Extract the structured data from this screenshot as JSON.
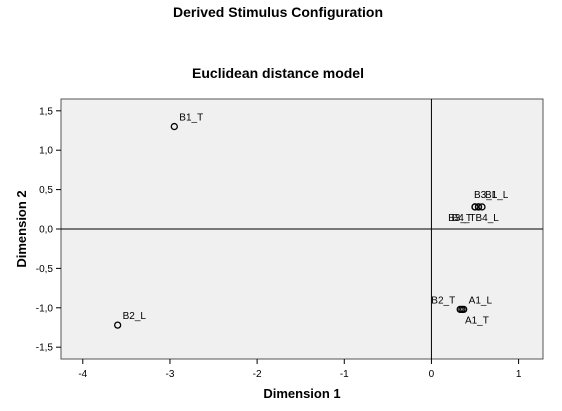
{
  "chart_data": {
    "type": "scatter",
    "title": "Derived Stimulus Configuration",
    "subtitle": "Euclidean distance model",
    "xlabel": "Dimension 1",
    "ylabel": "Dimension 2",
    "xlim": [
      -4.25,
      1.28
    ],
    "ylim": [
      -1.65,
      1.65
    ],
    "xticks": [
      -4,
      -3,
      -2,
      -1,
      0,
      1
    ],
    "yticks": [
      -1.5,
      -1.0,
      -0.5,
      0.0,
      0.5,
      1.0,
      1.5
    ],
    "xtick_labels": [
      "-4",
      "-3",
      "-2",
      "-1",
      "0",
      "1"
    ],
    "ytick_labels": [
      "-1,5",
      "-1,0",
      "-0,5",
      "0,0",
      "0,5",
      "1,0",
      "1,5"
    ],
    "grid": false,
    "reference_lines": {
      "x": 0,
      "y": 0
    },
    "colors": {
      "plot_background": "#f0f0f0",
      "frame": "#555555",
      "marker_stroke": "#000000"
    },
    "points": [
      {
        "label": "B1_T",
        "x": -2.95,
        "y": 1.3,
        "label_anchor": "start"
      },
      {
        "label": "B2_L",
        "x": -3.6,
        "y": -1.22,
        "label_anchor": "start"
      },
      {
        "label": "B1_L",
        "x": 0.58,
        "y": 0.28,
        "label_anchor": "start"
      },
      {
        "label": "B3_L",
        "x": 0.5,
        "y": 0.28,
        "label_anchor": "start"
      },
      {
        "label": "B3_T",
        "x": 0.5,
        "y": 0.28,
        "label_anchor": "end"
      },
      {
        "label": "B4_T",
        "x": 0.54,
        "y": 0.28,
        "label_anchor": "end"
      },
      {
        "label": "B4_L",
        "x": 0.54,
        "y": 0.28,
        "label_anchor": "start"
      },
      {
        "label": "A1_L",
        "x": 0.37,
        "y": -1.02,
        "label_anchor": "start"
      },
      {
        "label": "A1_T",
        "x": 0.35,
        "y": -1.02,
        "label_anchor": "start"
      },
      {
        "label": "B2_T",
        "x": 0.33,
        "y": -1.02,
        "label_anchor": "end"
      }
    ]
  }
}
